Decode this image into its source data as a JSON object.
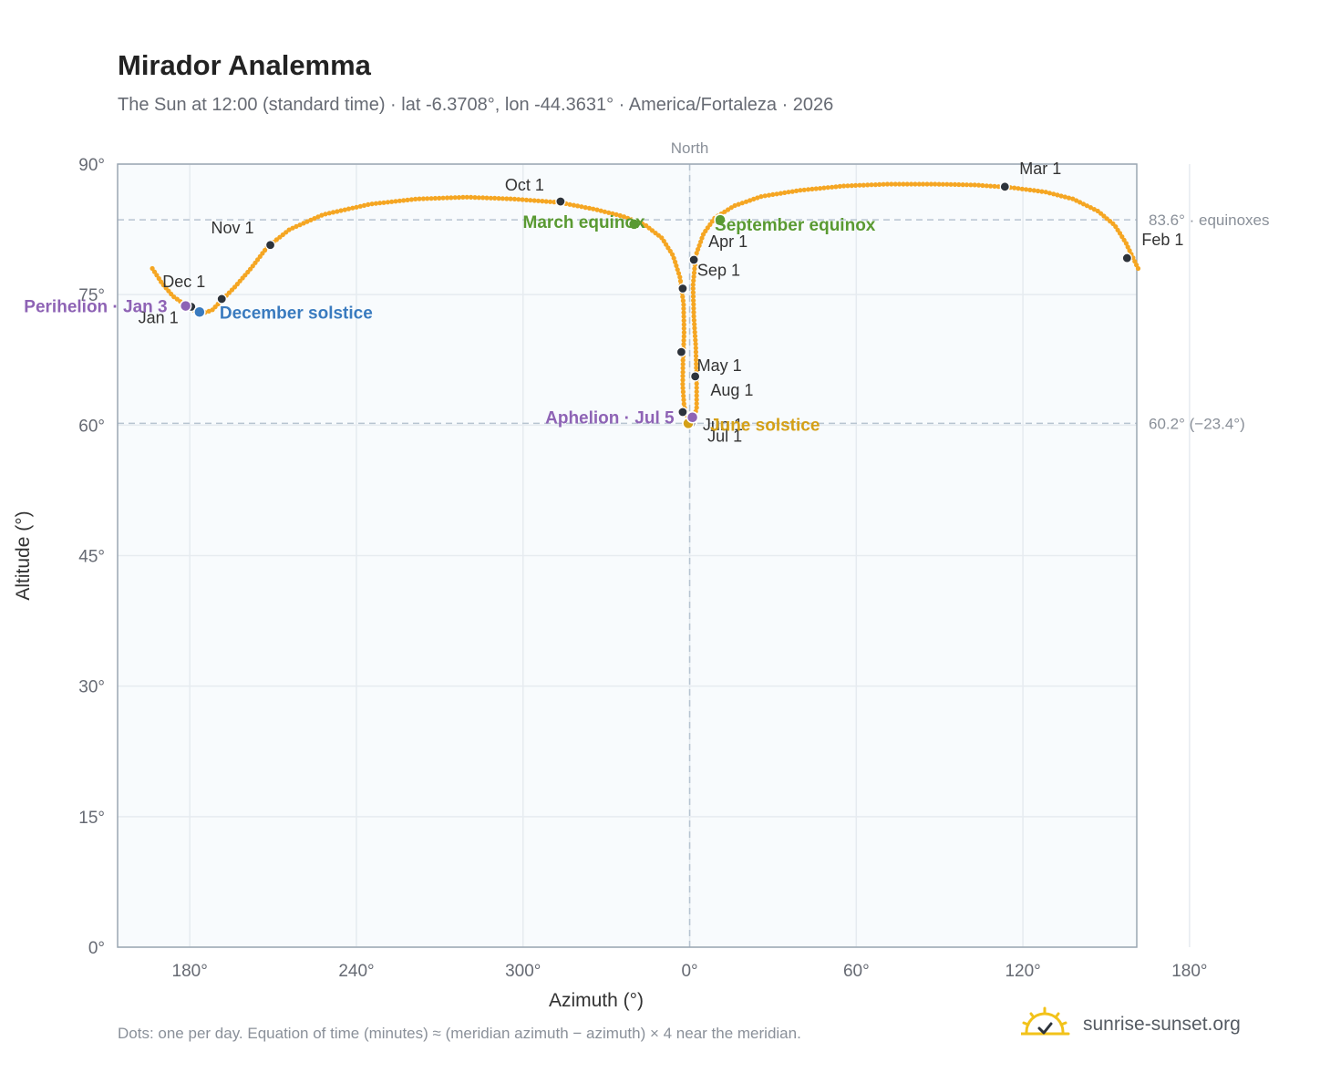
{
  "title": "Mirador Analemma",
  "subtitle": "The Sun at 12:00 (standard time) · lat -6.3708°, lon -44.3631° · America/Fortaleza · 2026",
  "footer_note": "Dots: one per day. Equation of time (minutes) ≈ (meridian azimuth − azimuth) × 4 near the meridian.",
  "brand": {
    "text": "sunrise-sunset.org",
    "icon": "sun-check-logo-icon"
  },
  "colors": {
    "path": "#f5a623",
    "month_dot": "#2d333b",
    "equinox": "#5a9a32",
    "december_solstice": "#3a7bbf",
    "june_solstice": "#d4a017",
    "apsis": "#8e63b5",
    "ref_line": "#b7c4d1",
    "plot_bg": "#f8fbfd",
    "grid": "#e6ebf0",
    "frame": "#9aa6b2"
  },
  "chart_data": {
    "type": "scatter",
    "xlabel": "Azimuth (°)",
    "ylabel": "Altitude (°)",
    "xlim": [
      154,
      521
    ],
    "ylim": [
      0,
      90
    ],
    "x_ticks": [
      {
        "value": 180,
        "label": "180°"
      },
      {
        "value": 240,
        "label": "240°"
      },
      {
        "value": 300,
        "label": "300°"
      },
      {
        "value": 360,
        "label": "0°"
      },
      {
        "value": 420,
        "label": "60°"
      },
      {
        "value": 480,
        "label": "120°"
      },
      {
        "value": 540,
        "label": "180°"
      }
    ],
    "y_ticks": [
      {
        "value": 0,
        "label": "0°"
      },
      {
        "value": 15,
        "label": "15°"
      },
      {
        "value": 30,
        "label": "30°"
      },
      {
        "value": 45,
        "label": "45°"
      },
      {
        "value": 60,
        "label": "60°"
      },
      {
        "value": 75,
        "label": "75°"
      },
      {
        "value": 90,
        "label": "90°"
      }
    ],
    "grid": true,
    "meridian": {
      "x": 360,
      "label": "North"
    },
    "reference_lines": [
      {
        "y": 83.6,
        "label": "83.6° · equinoxes"
      },
      {
        "y": 60.2,
        "label": "60.2° (−23.4°)"
      }
    ],
    "path": [
      {
        "x": 166.5,
        "y": 78.0
      },
      {
        "x": 170,
        "y": 76.3
      },
      {
        "x": 174,
        "y": 74.8
      },
      {
        "x": 178,
        "y": 73.9
      },
      {
        "x": 181.5,
        "y": 73.2
      },
      {
        "x": 185,
        "y": 72.9
      },
      {
        "x": 188,
        "y": 73.2
      },
      {
        "x": 191,
        "y": 74.2
      },
      {
        "x": 196,
        "y": 75.8
      },
      {
        "x": 202,
        "y": 78.0
      },
      {
        "x": 208,
        "y": 80.5
      },
      {
        "x": 216,
        "y": 82.5
      },
      {
        "x": 228,
        "y": 84.2
      },
      {
        "x": 245,
        "y": 85.4
      },
      {
        "x": 262,
        "y": 86.0
      },
      {
        "x": 280,
        "y": 86.2
      },
      {
        "x": 296,
        "y": 86.0
      },
      {
        "x": 313,
        "y": 85.6
      },
      {
        "x": 326,
        "y": 84.8
      },
      {
        "x": 336,
        "y": 84.0
      },
      {
        "x": 344,
        "y": 83.0
      },
      {
        "x": 350,
        "y": 81.5
      },
      {
        "x": 354,
        "y": 79.5
      },
      {
        "x": 356.5,
        "y": 77.0
      },
      {
        "x": 357.8,
        "y": 74.0
      },
      {
        "x": 358,
        "y": 70.5
      },
      {
        "x": 357.6,
        "y": 67.5
      },
      {
        "x": 357.5,
        "y": 64.5
      },
      {
        "x": 358,
        "y": 62.2
      },
      {
        "x": 359.3,
        "y": 60.7
      },
      {
        "x": 360.6,
        "y": 60.1
      },
      {
        "x": 361.5,
        "y": 60.6
      },
      {
        "x": 362.5,
        "y": 62.0
      },
      {
        "x": 362.5,
        "y": 65.0
      },
      {
        "x": 362.2,
        "y": 69.0
      },
      {
        "x": 361.5,
        "y": 72.5
      },
      {
        "x": 361.2,
        "y": 76.0
      },
      {
        "x": 362.2,
        "y": 79.5
      },
      {
        "x": 365,
        "y": 82.0
      },
      {
        "x": 369,
        "y": 83.8
      },
      {
        "x": 376,
        "y": 85.2
      },
      {
        "x": 386,
        "y": 86.3
      },
      {
        "x": 400,
        "y": 87.0
      },
      {
        "x": 416,
        "y": 87.5
      },
      {
        "x": 432,
        "y": 87.7
      },
      {
        "x": 448,
        "y": 87.7
      },
      {
        "x": 463,
        "y": 87.6
      },
      {
        "x": 476,
        "y": 87.3
      },
      {
        "x": 488,
        "y": 86.8
      },
      {
        "x": 498,
        "y": 86.0
      },
      {
        "x": 507,
        "y": 84.6
      },
      {
        "x": 513,
        "y": 83.0
      },
      {
        "x": 517,
        "y": 81.0
      },
      {
        "x": 520,
        "y": 79.0
      },
      {
        "x": 521.5,
        "y": 78.0
      }
    ],
    "month_markers": [
      {
        "label": "Jan 1",
        "x": 180.5,
        "y": 73.6,
        "dx": -14,
        "dy": 18,
        "anchor": "end"
      },
      {
        "label": "Feb 1",
        "x": 517.5,
        "y": 79.2,
        "dx": 16,
        "dy": -14,
        "anchor": "start"
      },
      {
        "label": "Mar 1",
        "x": 473.5,
        "y": 87.4,
        "dx": 16,
        "dy": -14,
        "anchor": "start"
      },
      {
        "label": "Apr 1",
        "x": 361.5,
        "y": 79.0,
        "dx": 16,
        "dy": -14,
        "anchor": "start"
      },
      {
        "label": "May 1",
        "x": 362.0,
        "y": 65.6,
        "dx": 2,
        "dy": -6,
        "anchor": "start"
      },
      {
        "label": "Jun 1",
        "x": 357.5,
        "y": 61.5,
        "dx": 22,
        "dy": 20,
        "anchor": "start"
      },
      {
        "label": "Jul 1",
        "x": 360.5,
        "y": 60.2,
        "dx": 18,
        "dy": 20,
        "anchor": "start"
      },
      {
        "label": "Aug 1",
        "x": 357.0,
        "y": 68.4,
        "dx": 32,
        "dy": 48,
        "anchor": "start"
      },
      {
        "label": "Sep 1",
        "x": 357.5,
        "y": 75.7,
        "dx": 16,
        "dy": -14,
        "anchor": "start"
      },
      {
        "label": "Oct 1",
        "x": 313.5,
        "y": 85.7,
        "dx": -18,
        "dy": -12,
        "anchor": "end"
      },
      {
        "label": "Nov 1",
        "x": 209.0,
        "y": 80.7,
        "dx": -18,
        "dy": -13,
        "anchor": "end"
      },
      {
        "label": "Dec 1",
        "x": 191.5,
        "y": 74.5,
        "dx": -18,
        "dy": -13,
        "anchor": "end"
      }
    ],
    "events": [
      {
        "label": "March equinox",
        "x": 340.0,
        "y": 83.1,
        "dx": 12,
        "dy": 4,
        "anchor": "end",
        "color": "#5a9a32"
      },
      {
        "label": "September equinox",
        "x": 371.0,
        "y": 83.6,
        "dx": -6,
        "dy": 12,
        "anchor": "start",
        "color": "#5a9a32"
      },
      {
        "label": "December solstice",
        "x": 183.5,
        "y": 73.0,
        "dx": 22,
        "dy": 7,
        "anchor": "start",
        "color": "#3a7bbf"
      },
      {
        "label": "June solstice",
        "x": 359.5,
        "y": 60.2,
        "dx": 24,
        "dy": 8,
        "anchor": "start",
        "color": "#d4a017"
      },
      {
        "label": "Perihelion · Jan 3",
        "x": 178.5,
        "y": 73.7,
        "dx": -20,
        "dy": 7,
        "anchor": "end",
        "color": "#8e63b5"
      },
      {
        "label": "Aphelion · Jul 5",
        "x": 361.0,
        "y": 60.9,
        "dx": -20,
        "dy": 7,
        "anchor": "end",
        "color": "#8e63b5"
      }
    ]
  }
}
